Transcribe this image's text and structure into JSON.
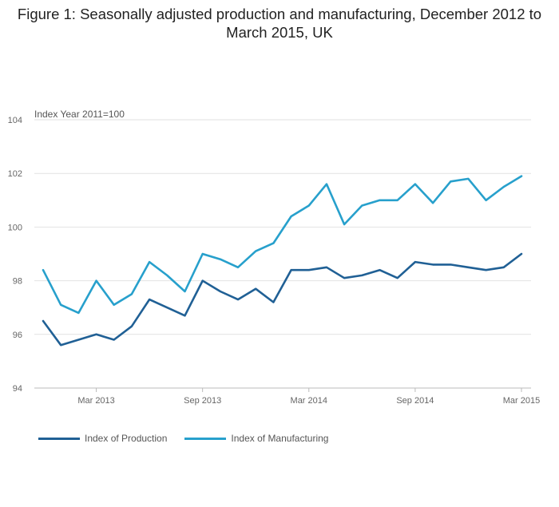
{
  "title": "Figure 1: Seasonally adjusted production and manufacturing, December 2012 to March 2015, UK",
  "chart_data": {
    "type": "line",
    "title": "Figure 1: Seasonally adjusted production and manufacturing, December 2012 to March 2015, UK",
    "ylabel": "Index Year 2011=100",
    "xlabel": "",
    "ylim": [
      94,
      104
    ],
    "yticks": [
      94,
      96,
      98,
      100,
      102,
      104
    ],
    "grid": true,
    "legend": "bottom-left",
    "x": [
      "Dec 2012",
      "Jan 2013",
      "Feb 2013",
      "Mar 2013",
      "Apr 2013",
      "May 2013",
      "Jun 2013",
      "Jul 2013",
      "Aug 2013",
      "Sep 2013",
      "Oct 2013",
      "Nov 2013",
      "Dec 2013",
      "Jan 2014",
      "Feb 2014",
      "Mar 2014",
      "Apr 2014",
      "May 2014",
      "Jun 2014",
      "Jul 2014",
      "Aug 2014",
      "Sep 2014",
      "Oct 2014",
      "Nov 2014",
      "Dec 2014",
      "Jan 2015",
      "Feb 2015",
      "Mar 2015"
    ],
    "xtick_labels": [
      {
        "label": "Mar 2013",
        "index": 3
      },
      {
        "label": "Sep 2013",
        "index": 9
      },
      {
        "label": "Mar 2014",
        "index": 15
      },
      {
        "label": "Sep 2014",
        "index": 21
      },
      {
        "label": "Mar 2015",
        "index": 27
      }
    ],
    "series": [
      {
        "name": "Index of Production",
        "color": "#206095",
        "values": [
          96.5,
          95.6,
          95.8,
          96.0,
          95.8,
          96.3,
          97.3,
          97.0,
          96.7,
          98.0,
          97.6,
          97.3,
          97.7,
          97.2,
          98.4,
          98.4,
          98.5,
          98.1,
          98.2,
          98.4,
          98.1,
          98.7,
          98.6,
          98.6,
          98.5,
          98.4,
          98.5,
          99.0
        ]
      },
      {
        "name": "Index of Manufacturing",
        "color": "#27a0cc",
        "values": [
          98.4,
          97.1,
          96.8,
          98.0,
          97.1,
          97.5,
          98.7,
          98.2,
          97.6,
          99.0,
          98.8,
          98.5,
          99.1,
          99.4,
          100.4,
          100.8,
          101.6,
          100.1,
          100.8,
          101.0,
          101.0,
          101.6,
          100.9,
          101.7,
          101.8,
          101.0,
          101.5,
          101.9
        ]
      }
    ]
  }
}
